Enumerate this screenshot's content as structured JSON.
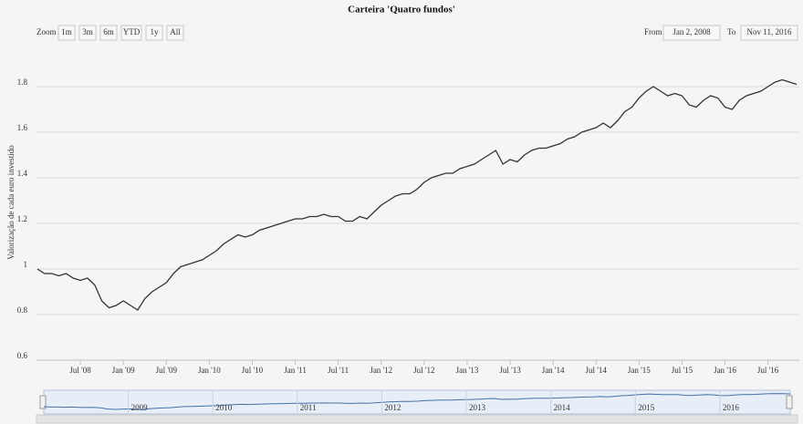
{
  "chart_data": {
    "type": "line",
    "title": "Carteira 'Quatro fundos'",
    "y_label": "Valorização de cada euro investido",
    "zoom_label": "Zoom",
    "zoom_buttons": [
      "1m",
      "3m",
      "6m",
      "YTD",
      "1y",
      "All"
    ],
    "from_label": "From",
    "from_date": "Jan 2, 2008",
    "to_label": "To",
    "to_date": "Nov 11, 2016",
    "color": "#333333",
    "navigator_color": "#4572a7",
    "x": [
      "2008-01",
      "2008-02",
      "2008-03",
      "2008-04",
      "2008-05",
      "2008-06",
      "2008-07",
      "2008-08",
      "2008-09",
      "2008-10",
      "2008-11",
      "2008-12",
      "2009-01",
      "2009-02",
      "2009-03",
      "2009-04",
      "2009-05",
      "2009-06",
      "2009-07",
      "2009-08",
      "2009-09",
      "2009-10",
      "2009-11",
      "2009-12",
      "2010-01",
      "2010-02",
      "2010-03",
      "2010-04",
      "2010-05",
      "2010-06",
      "2010-07",
      "2010-08",
      "2010-09",
      "2010-10",
      "2010-11",
      "2010-12",
      "2011-01",
      "2011-02",
      "2011-03",
      "2011-04",
      "2011-05",
      "2011-06",
      "2011-07",
      "2011-08",
      "2011-09",
      "2011-10",
      "2011-11",
      "2011-12",
      "2012-01",
      "2012-02",
      "2012-03",
      "2012-04",
      "2012-05",
      "2012-06",
      "2012-07",
      "2012-08",
      "2012-09",
      "2012-10",
      "2012-11",
      "2012-12",
      "2013-01",
      "2013-02",
      "2013-03",
      "2013-04",
      "2013-05",
      "2013-06",
      "2013-07",
      "2013-08",
      "2013-09",
      "2013-10",
      "2013-11",
      "2013-12",
      "2014-01",
      "2014-02",
      "2014-03",
      "2014-04",
      "2014-05",
      "2014-06",
      "2014-07",
      "2014-08",
      "2014-09",
      "2014-10",
      "2014-11",
      "2014-12",
      "2015-01",
      "2015-02",
      "2015-03",
      "2015-04",
      "2015-05",
      "2015-06",
      "2015-07",
      "2015-08",
      "2015-09",
      "2015-10",
      "2015-11",
      "2015-12",
      "2016-01",
      "2016-02",
      "2016-03",
      "2016-04",
      "2016-05",
      "2016-06",
      "2016-07",
      "2016-08",
      "2016-09",
      "2016-10",
      "2016-11"
    ],
    "values": [
      1.0,
      0.98,
      0.98,
      0.97,
      0.98,
      0.96,
      0.95,
      0.96,
      0.93,
      0.86,
      0.83,
      0.84,
      0.86,
      0.84,
      0.82,
      0.87,
      0.9,
      0.92,
      0.94,
      0.98,
      1.01,
      1.02,
      1.03,
      1.04,
      1.06,
      1.08,
      1.11,
      1.13,
      1.15,
      1.14,
      1.15,
      1.17,
      1.18,
      1.19,
      1.2,
      1.21,
      1.22,
      1.22,
      1.23,
      1.23,
      1.24,
      1.23,
      1.23,
      1.21,
      1.21,
      1.23,
      1.22,
      1.25,
      1.28,
      1.3,
      1.32,
      1.33,
      1.33,
      1.35,
      1.38,
      1.4,
      1.41,
      1.42,
      1.42,
      1.44,
      1.45,
      1.46,
      1.48,
      1.5,
      1.52,
      1.46,
      1.48,
      1.47,
      1.5,
      1.52,
      1.53,
      1.53,
      1.54,
      1.55,
      1.57,
      1.58,
      1.6,
      1.61,
      1.62,
      1.64,
      1.62,
      1.65,
      1.69,
      1.71,
      1.75,
      1.78,
      1.8,
      1.78,
      1.76,
      1.77,
      1.76,
      1.72,
      1.71,
      1.74,
      1.76,
      1.75,
      1.71,
      1.7,
      1.74,
      1.76,
      1.77,
      1.78,
      1.8,
      1.82,
      1.83,
      1.82,
      1.81
    ],
    "xlim": [
      "2008-01",
      "2016-11"
    ],
    "xticks": [
      {
        "value": "2008-07",
        "label": "Jul '08"
      },
      {
        "value": "2009-01",
        "label": "Jan '09"
      },
      {
        "value": "2009-07",
        "label": "Jul '09"
      },
      {
        "value": "2010-01",
        "label": "Jan '10"
      },
      {
        "value": "2010-07",
        "label": "Jul '10"
      },
      {
        "value": "2011-01",
        "label": "Jan '11"
      },
      {
        "value": "2011-07",
        "label": "Jul '11"
      },
      {
        "value": "2012-01",
        "label": "Jan '12"
      },
      {
        "value": "2012-07",
        "label": "Jul '12"
      },
      {
        "value": "2013-01",
        "label": "Jan '13"
      },
      {
        "value": "2013-07",
        "label": "Jul '13"
      },
      {
        "value": "2014-01",
        "label": "Jan '14"
      },
      {
        "value": "2014-07",
        "label": "Jul '14"
      },
      {
        "value": "2015-01",
        "label": "Jan '15"
      },
      {
        "value": "2015-07",
        "label": "Jul '15"
      },
      {
        "value": "2016-01",
        "label": "Jan '16"
      },
      {
        "value": "2016-07",
        "label": "Jul '16"
      }
    ],
    "ylim": [
      0.6,
      1.98
    ],
    "yticks": [
      0.6,
      0.8,
      {
        "value": 1,
        "label": "1"
      },
      1.2,
      1.4,
      1.6,
      1.8
    ],
    "navigator_ticks": [
      {
        "value": "2009-01",
        "label": "2009"
      },
      {
        "value": "2010-01",
        "label": "2010"
      },
      {
        "value": "2011-01",
        "label": "2011"
      },
      {
        "value": "2012-01",
        "label": "2012"
      },
      {
        "value": "2013-01",
        "label": "2013"
      },
      {
        "value": "2014-01",
        "label": "2014"
      },
      {
        "value": "2015-01",
        "label": "2015"
      },
      {
        "value": "2016-01",
        "label": "2016"
      }
    ],
    "grid": true
  }
}
